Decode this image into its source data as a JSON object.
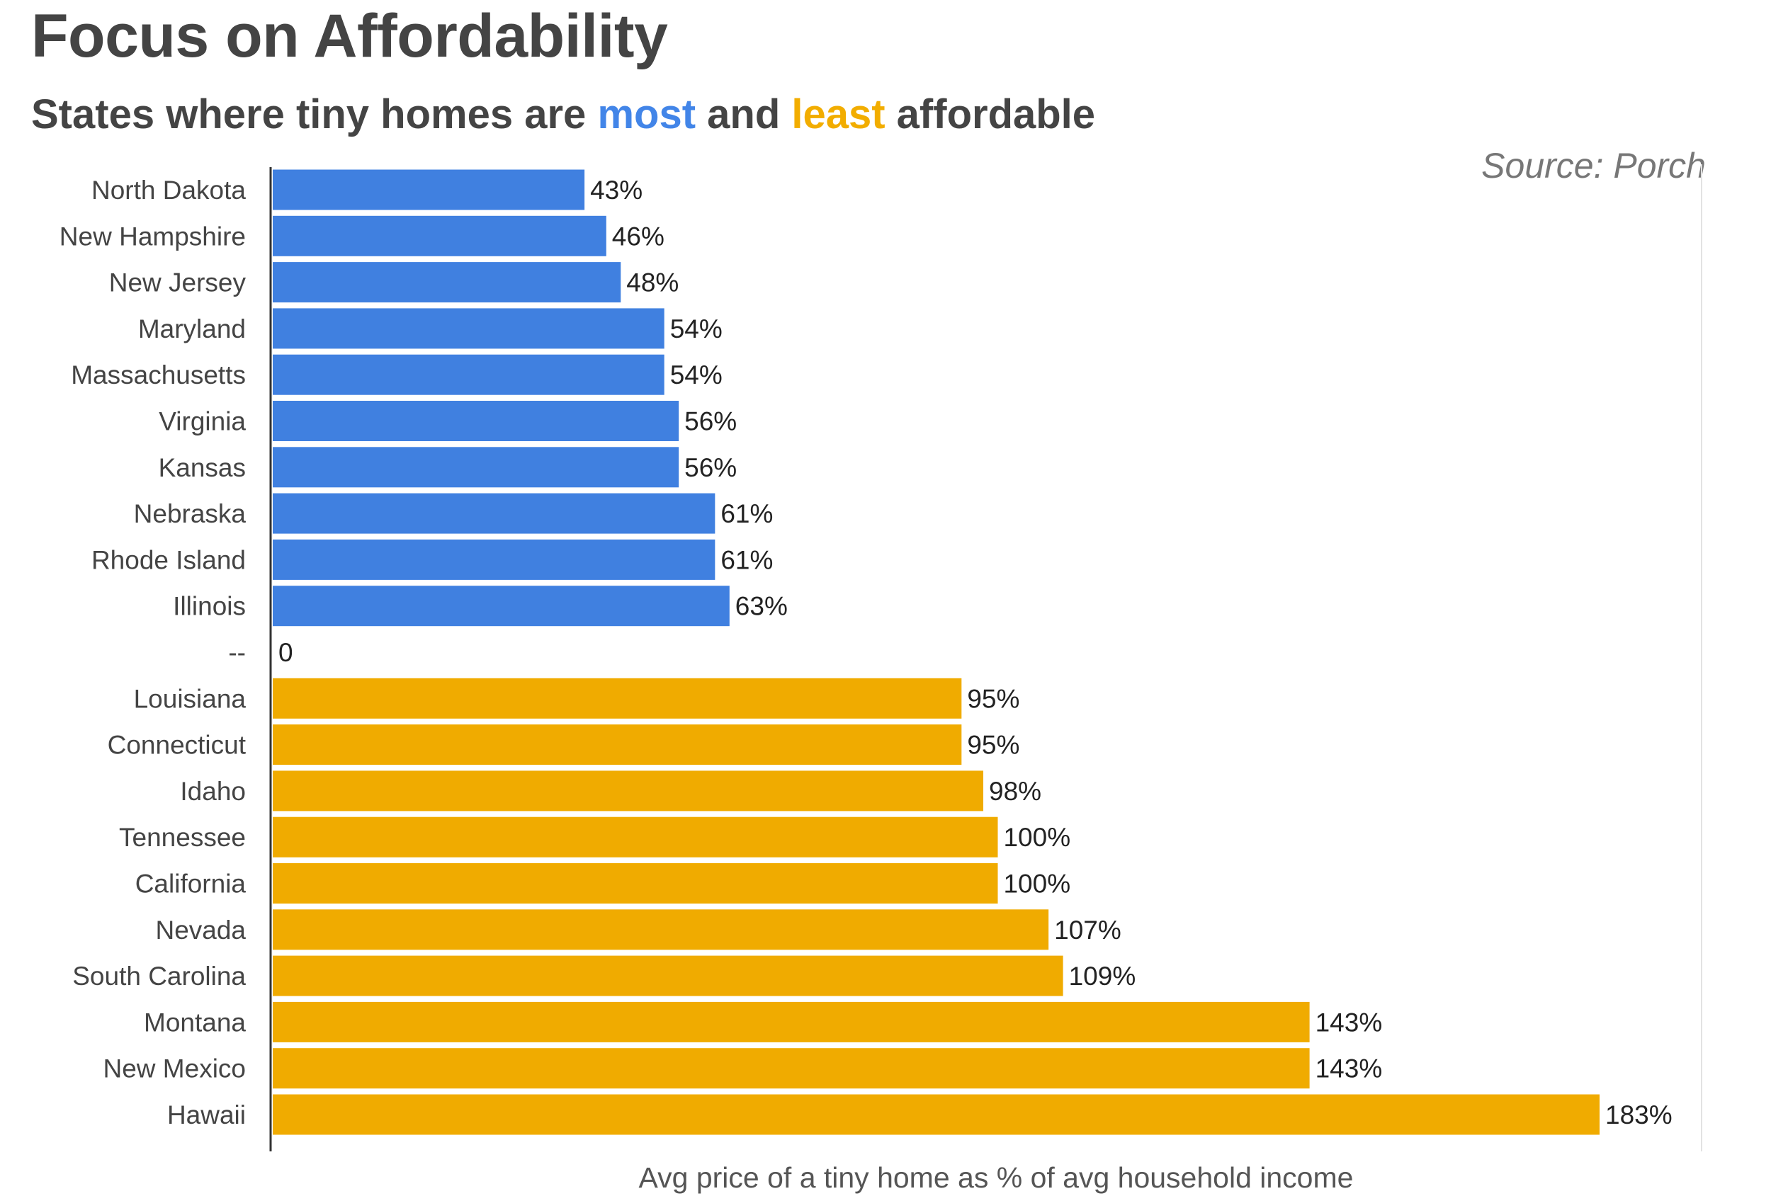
{
  "header": {
    "title": "Focus on Affordability",
    "subtitle_parts": {
      "prefix": "States where tiny homes are ",
      "most": "most",
      "middle": " and ",
      "least": "least",
      "suffix": " affordable"
    },
    "source": "Source: Porch"
  },
  "colors": {
    "most": "#4080e0",
    "least": "#f0ab00",
    "text": "#444444"
  },
  "chart_data": {
    "type": "bar",
    "orientation": "horizontal",
    "title": "Focus on Affordability",
    "subtitle": "States where tiny homes are most and least affordable",
    "xlabel": "Avg price of a tiny home as % of avg household income",
    "ylabel": "",
    "xlim": [
      0,
      183
    ],
    "grid": false,
    "legend": "none",
    "categories": [
      "North Dakota",
      "New Hampshire",
      "New Jersey",
      "Maryland",
      "Massachusetts",
      "Virginia",
      "Kansas",
      "Nebraska",
      "Rhode Island",
      "Illinois",
      "--",
      "Louisiana",
      "Connecticut",
      "Idaho",
      "Tennessee",
      "California",
      "Nevada",
      "South Carolina",
      "Montana",
      "New Mexico",
      "Hawaii"
    ],
    "values": [
      43,
      46,
      48,
      54,
      54,
      56,
      56,
      61,
      61,
      63,
      0,
      95,
      95,
      98,
      100,
      100,
      107,
      109,
      143,
      143,
      183
    ],
    "data_labels": [
      "43%",
      "46%",
      "48%",
      "54%",
      "54%",
      "56%",
      "56%",
      "61%",
      "61%",
      "63%",
      "0",
      "95%",
      "95%",
      "98%",
      "100%",
      "100%",
      "107%",
      "109%",
      "143%",
      "143%",
      "183%"
    ],
    "groups": [
      "most",
      "most",
      "most",
      "most",
      "most",
      "most",
      "most",
      "most",
      "most",
      "most",
      "separator",
      "least",
      "least",
      "least",
      "least",
      "least",
      "least",
      "least",
      "least",
      "least",
      "least"
    ]
  }
}
